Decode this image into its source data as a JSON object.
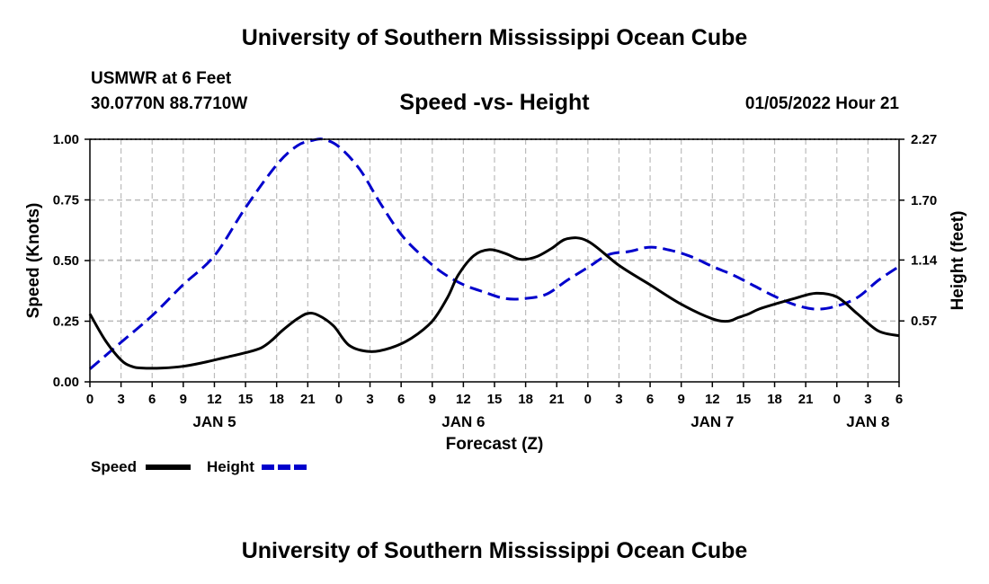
{
  "header": {
    "title": "University of Southern Mississippi Ocean Cube",
    "station": "USMWR at 6 Feet",
    "coords": "30.0770N  88.7710W",
    "chart_title": "Speed -vs- Height",
    "datestamp": "01/05/2022 Hour 21"
  },
  "footer": {
    "title": "University of Southern Mississippi Ocean Cube"
  },
  "chart_data": {
    "type": "line",
    "title": "Speed -vs- Height",
    "xlabel": "Forecast (Z)",
    "ylabel_left": "Speed (Knots)",
    "ylabel_right": "Height (feet)",
    "x_hours": [
      0,
      78
    ],
    "x_tick_labels": [
      "0",
      "3",
      "6",
      "9",
      "12",
      "15",
      "18",
      "21",
      "0",
      "3",
      "6",
      "9",
      "12",
      "15",
      "18",
      "21",
      "0",
      "3",
      "6",
      "9",
      "12",
      "15",
      "18",
      "21",
      "0",
      "3",
      "6"
    ],
    "day_labels": [
      {
        "label": "JAN 5",
        "hour": 12
      },
      {
        "label": "JAN 6",
        "hour": 36
      },
      {
        "label": "JAN 7",
        "hour": 60
      },
      {
        "label": "JAN 8",
        "hour": 75
      }
    ],
    "left_axis": {
      "min": 0,
      "max": 1,
      "ticks": [
        "0.00",
        "0.25",
        "0.50",
        "0.75",
        "1.00"
      ]
    },
    "right_axis": {
      "min": 0,
      "max": 2.27,
      "ticks": [
        "0.57",
        "1.14",
        "1.70",
        "2.27"
      ]
    },
    "grid": true,
    "legend_position": "bottom-left",
    "series": [
      {
        "name": "Speed",
        "axis": "left",
        "color": "#000000",
        "dash": "solid",
        "x": [
          0,
          1.5,
          3,
          4,
          5,
          7,
          9,
          11,
          13,
          15,
          16.5,
          17.5,
          18.5,
          20,
          21,
          22,
          23.5,
          25,
          27,
          29,
          31,
          33,
          34.5,
          35.5,
          37,
          38.5,
          40,
          41.5,
          43,
          44.5,
          46,
          48,
          51,
          54,
          57,
          60,
          61.5,
          62.5,
          63.5,
          64.5,
          66,
          68,
          70,
          72,
          74,
          76,
          78
        ],
        "values": [
          0.28,
          0.17,
          0.09,
          0.064,
          0.057,
          0.057,
          0.064,
          0.08,
          0.1,
          0.12,
          0.14,
          0.17,
          0.21,
          0.26,
          0.282,
          0.275,
          0.23,
          0.15,
          0.125,
          0.14,
          0.18,
          0.25,
          0.35,
          0.44,
          0.52,
          0.545,
          0.53,
          0.505,
          0.515,
          0.55,
          0.59,
          0.58,
          0.48,
          0.4,
          0.32,
          0.26,
          0.25,
          0.265,
          0.28,
          0.3,
          0.32,
          0.345,
          0.365,
          0.35,
          0.28,
          0.21,
          0.19
        ]
      },
      {
        "name": "Height",
        "axis": "right",
        "color": "#0000cc",
        "dash": "dashed",
        "x": [
          0,
          3,
          6,
          9,
          12,
          15,
          18,
          20,
          21.5,
          22.5,
          24,
          26,
          28,
          30,
          32,
          34,
          36,
          38,
          40,
          42,
          44,
          46,
          48,
          50,
          52,
          54,
          56,
          58,
          60,
          62,
          64,
          66,
          68,
          70,
          72,
          74,
          76,
          78
        ],
        "values": [
          0.12,
          0.37,
          0.62,
          0.91,
          1.18,
          1.63,
          2.03,
          2.21,
          2.26,
          2.27,
          2.2,
          1.99,
          1.67,
          1.38,
          1.18,
          1.02,
          0.91,
          0.84,
          0.78,
          0.78,
          0.82,
          0.95,
          1.07,
          1.19,
          1.22,
          1.26,
          1.23,
          1.17,
          1.08,
          1.0,
          0.9,
          0.8,
          0.72,
          0.68,
          0.71,
          0.79,
          0.95,
          1.08
        ]
      }
    ]
  }
}
